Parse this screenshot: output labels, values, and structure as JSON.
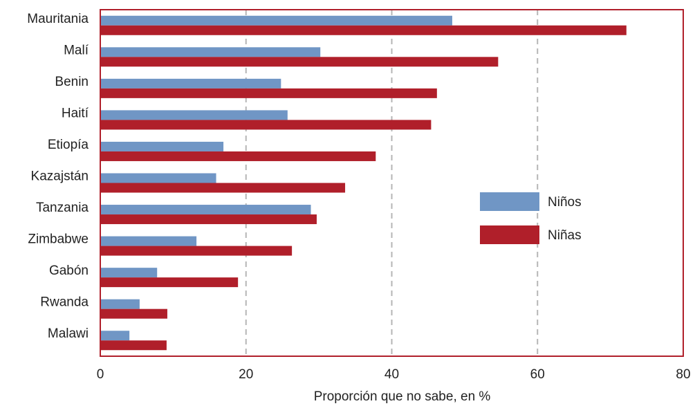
{
  "chart_data": {
    "type": "bar",
    "orientation": "horizontal",
    "categories": [
      "Mauritania",
      "Malí",
      "Benin",
      "Haití",
      "Etiopía",
      "Kazajstán",
      "Tanzania",
      "Zimbabwe",
      "Gabón",
      "Rwanda",
      "Malawi"
    ],
    "series": [
      {
        "name": "Niños",
        "values": [
          48.3,
          30.2,
          24.8,
          25.7,
          16.9,
          15.9,
          28.9,
          13.2,
          7.8,
          5.4,
          4.0
        ],
        "color": "#7096c5"
      },
      {
        "name": "Niñas",
        "values": [
          72.2,
          54.6,
          46.2,
          45.4,
          37.8,
          33.6,
          29.7,
          26.3,
          18.9,
          9.2,
          9.1
        ],
        "color": "#b01f2a"
      }
    ],
    "xlabel": "Proporción que no sabe, en %",
    "ylabel": "",
    "xlim": [
      0,
      80
    ],
    "xticks": [
      "0",
      "20",
      "40",
      "60",
      "80"
    ],
    "grid": "vertical dashed at 20, 40, 60",
    "legend_position": "right",
    "frame_color": "#b01f2a"
  }
}
